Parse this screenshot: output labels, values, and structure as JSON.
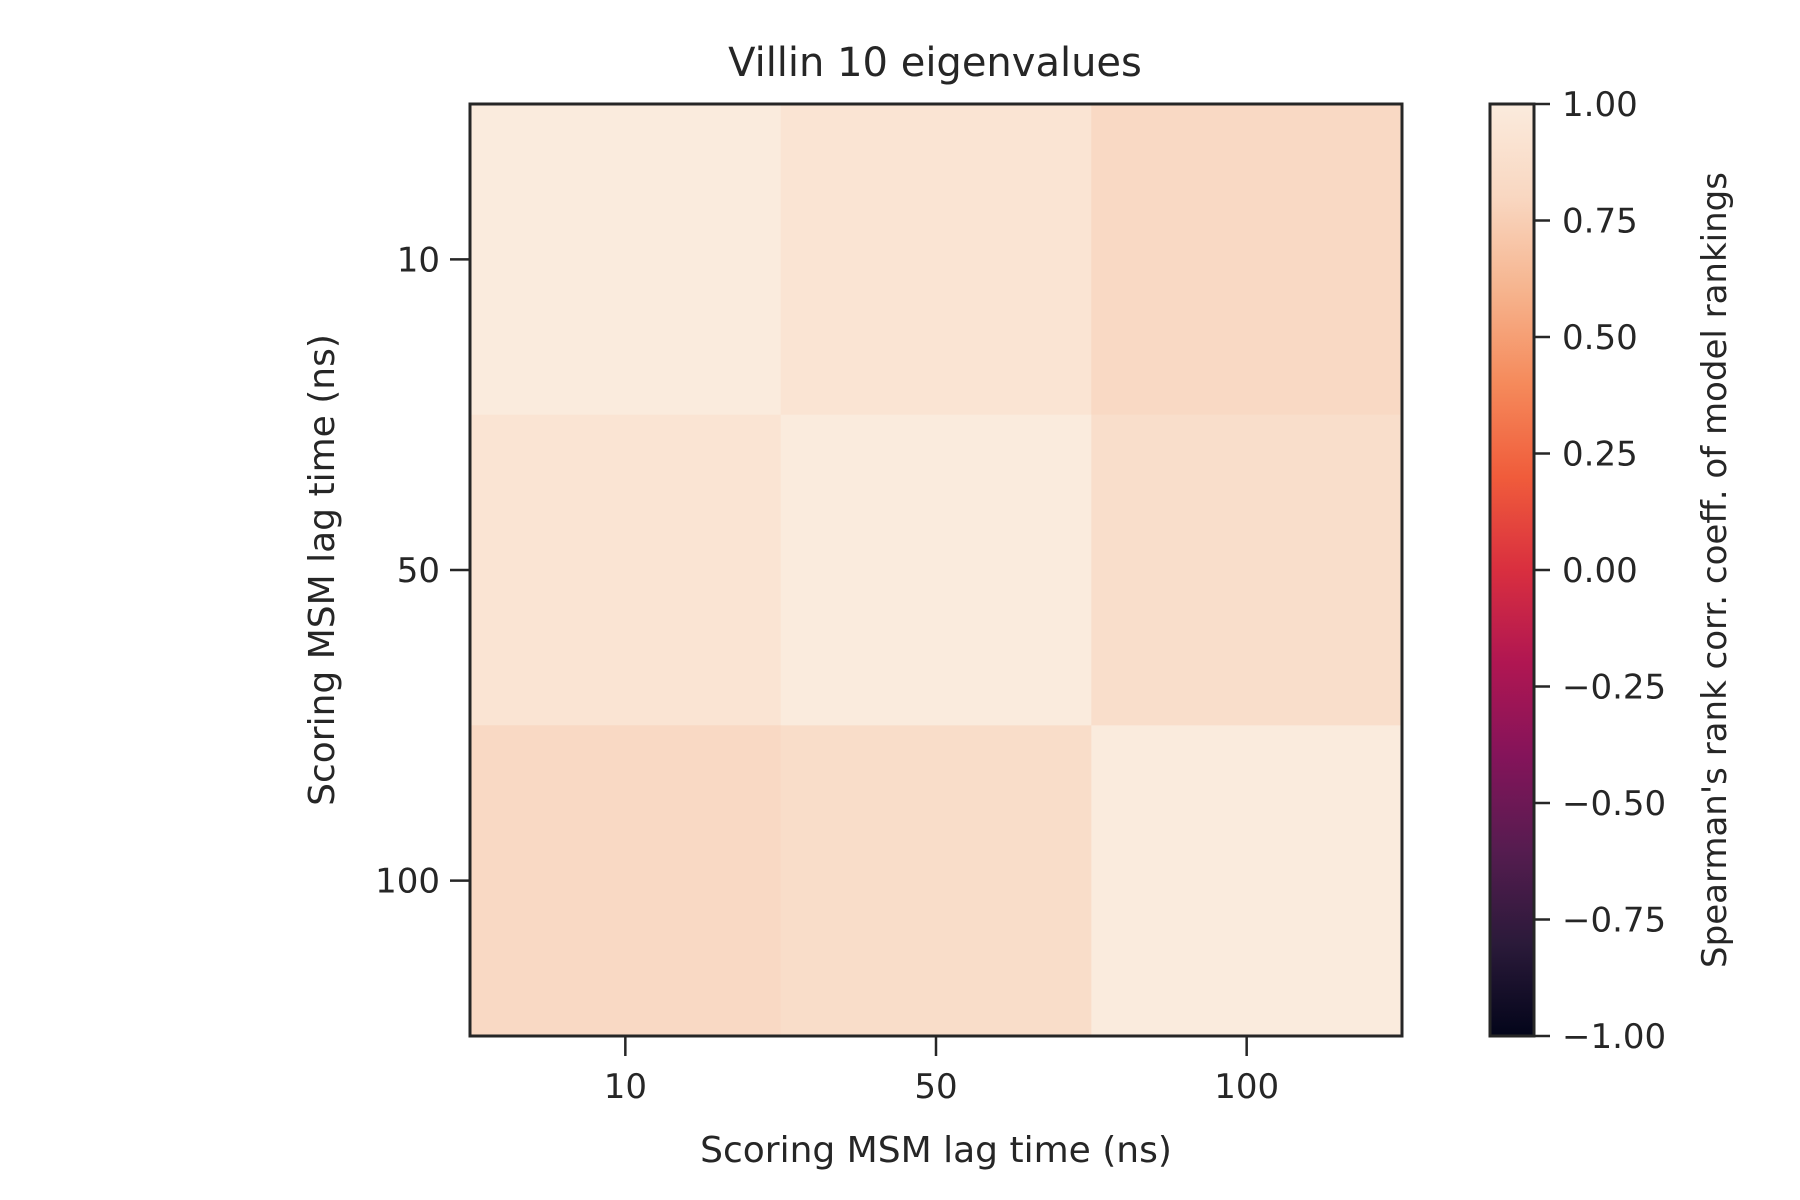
{
  "chart_data": {
    "type": "heatmap",
    "title": "Villin 10 eigenvalues",
    "xlabel": "Scoring MSM lag time (ns)",
    "ylabel": "Scoring MSM lag time (ns)",
    "x_categories": [
      "10",
      "50",
      "100"
    ],
    "y_categories": [
      "10",
      "50",
      "100"
    ],
    "values": [
      [
        1.0,
        0.93,
        0.82
      ],
      [
        0.93,
        1.0,
        0.87
      ],
      [
        0.82,
        0.86,
        1.0
      ]
    ],
    "colorbar": {
      "label": "Spearman's rank corr. coeff. of model rankings",
      "range": [
        -1.0,
        1.0
      ],
      "ticks": [
        {
          "value": 1.0,
          "label": "1.00"
        },
        {
          "value": 0.75,
          "label": "0.75"
        },
        {
          "value": 0.5,
          "label": "0.50"
        },
        {
          "value": 0.25,
          "label": "0.25"
        },
        {
          "value": 0.0,
          "label": "0.00"
        },
        {
          "value": -0.25,
          "label": "−0.25"
        },
        {
          "value": -0.5,
          "label": "−0.50"
        },
        {
          "value": -0.75,
          "label": "−0.75"
        },
        {
          "value": -1.0,
          "label": "−1.00"
        }
      ],
      "colormap": "rocket",
      "colormap_stops": [
        "#03051a",
        "#2b1a3a",
        "#561c50",
        "#84145a",
        "#b01652",
        "#d92f3f",
        "#f05c3b",
        "#f58a5b",
        "#f6b48e",
        "#f9d7c1",
        "#faebdd"
      ]
    },
    "grid": false
  }
}
